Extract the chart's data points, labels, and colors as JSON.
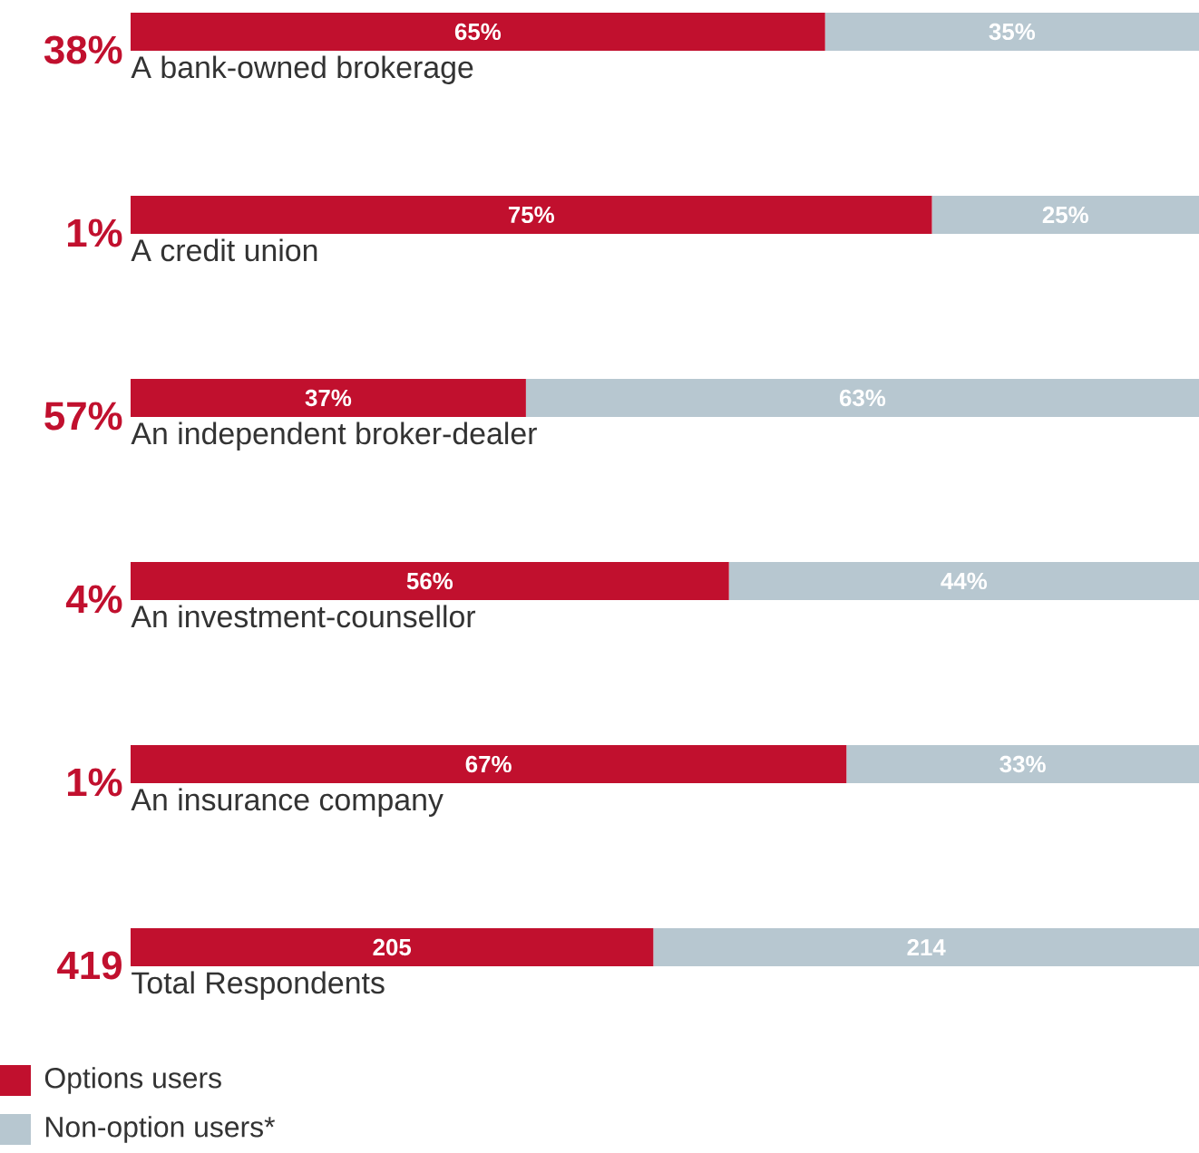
{
  "chart_data": [
    {
      "type": "bar",
      "orientation": "horizontal",
      "stacked": true,
      "categories": [
        "A bank-owned brokerage",
        "A credit union",
        "An independent broker-dealer",
        "An investment-counsellor",
        "An insurance company"
      ],
      "series": [
        {
          "color": "#c1102e",
          "values": [
            65,
            75,
            37,
            56,
            67
          ],
          "value_labels": [
            "65%",
            "75%",
            "37%",
            "56%",
            "67%"
          ]
        },
        {
          "color": "#b7c7d0",
          "values": [
            35,
            25,
            63,
            44,
            33
          ],
          "value_labels": [
            "35%",
            "25%",
            "63%",
            "44%",
            "33%"
          ]
        }
      ],
      "annotations": [
        "38%",
        "1%",
        "57%",
        "4%",
        "1%"
      ]
    },
    {
      "type": "bar",
      "orientation": "horizontal",
      "stacked": true,
      "data_labels": true,
      "categories": [
        "Total Respondents"
      ],
      "series": [
        {
          "name": "Options users",
          "color": "#c1102e",
          "values": [
            205
          ]
        },
        {
          "name": "Non-option users*",
          "color": "#b7c7d0",
          "values": [
            214
          ]
        }
      ],
      "annotations": [
        "419"
      ],
      "legend": "bottom left"
    }
  ]
}
